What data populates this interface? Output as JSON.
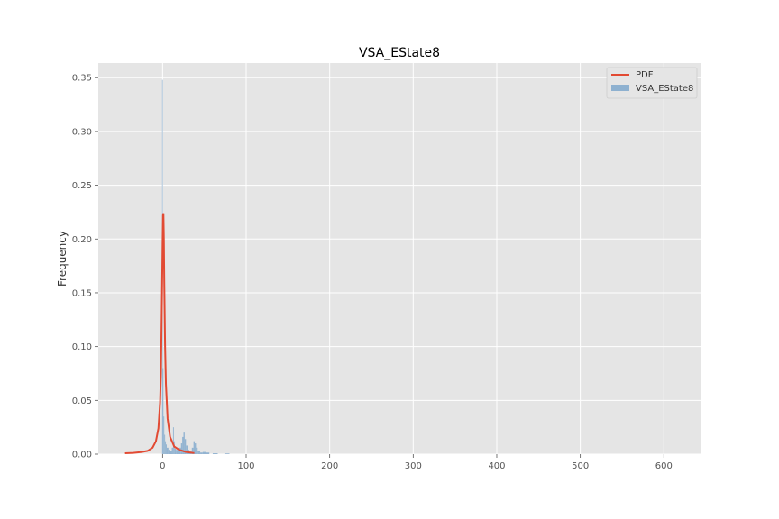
{
  "chart_data": {
    "type": "histogram",
    "title": "VSA_EState8",
    "xlabel": "",
    "ylabel": "Frequency",
    "xlim": [
      -77,
      645
    ],
    "ylim": [
      0,
      0.3636
    ],
    "xticks": [
      0,
      100,
      200,
      300,
      400,
      500,
      600
    ],
    "yticks": [
      0.0,
      0.05,
      0.1,
      0.15,
      0.2,
      0.25,
      0.3,
      0.35
    ],
    "ytick_labels": [
      "0.00",
      "0.05",
      "0.10",
      "0.15",
      "0.20",
      "0.25",
      "0.30",
      "0.35"
    ],
    "grid": true,
    "legend": {
      "placement": "top-right",
      "entries": [
        {
          "name": "PDF",
          "kind": "line",
          "color": "#E24A33"
        },
        {
          "name": "VSA_EState8",
          "kind": "patch",
          "color": "#8EB1D0"
        }
      ]
    },
    "colors": {
      "background": "#E5E5E5",
      "grid": "#FFFFFF",
      "pdf": "#E24A33",
      "hist": "#8EB1D0"
    },
    "series": [
      {
        "name": "PDF",
        "type": "line",
        "x": [
          -45,
          -35,
          -25,
          -18,
          -12,
          -8,
          -5,
          -3,
          -2,
          -1,
          0,
          0.5,
          1,
          1.5,
          2,
          3,
          4,
          6,
          9,
          14,
          20,
          28,
          38
        ],
        "y": [
          0.0008,
          0.0012,
          0.002,
          0.003,
          0.006,
          0.012,
          0.024,
          0.048,
          0.075,
          0.13,
          0.195,
          0.222,
          0.224,
          0.2,
          0.16,
          0.1,
          0.065,
          0.033,
          0.016,
          0.007,
          0.004,
          0.002,
          0.001
        ]
      },
      {
        "name": "VSA_EState8",
        "type": "histogram",
        "bins": [
          {
            "x0": -0.6,
            "x1": 0.2,
            "y": 0.348
          },
          {
            "x0": 0.2,
            "x1": 1.0,
            "y": 0.08
          },
          {
            "x0": 1.0,
            "x1": 2.0,
            "y": 0.035
          },
          {
            "x0": 2.0,
            "x1": 3.0,
            "y": 0.018
          },
          {
            "x0": 3.0,
            "x1": 4.0,
            "y": 0.012
          },
          {
            "x0": 4.0,
            "x1": 5.0,
            "y": 0.009
          },
          {
            "x0": 5.0,
            "x1": 7.0,
            "y": 0.006
          },
          {
            "x0": 7.0,
            "x1": 9.0,
            "y": 0.004
          },
          {
            "x0": 9.0,
            "x1": 11.0,
            "y": 0.003
          },
          {
            "x0": 11.0,
            "x1": 12.5,
            "y": 0.006
          },
          {
            "x0": 12.5,
            "x1": 13.5,
            "y": 0.025
          },
          {
            "x0": 13.5,
            "x1": 14.5,
            "y": 0.012
          },
          {
            "x0": 14.5,
            "x1": 16.0,
            "y": 0.005
          },
          {
            "x0": 16.0,
            "x1": 18.0,
            "y": 0.004
          },
          {
            "x0": 18.0,
            "x1": 20.0,
            "y": 0.005
          },
          {
            "x0": 20.0,
            "x1": 22.0,
            "y": 0.006
          },
          {
            "x0": 22.0,
            "x1": 23.5,
            "y": 0.01
          },
          {
            "x0": 23.5,
            "x1": 25.0,
            "y": 0.016
          },
          {
            "x0": 25.0,
            "x1": 26.5,
            "y": 0.02
          },
          {
            "x0": 26.5,
            "x1": 28.0,
            "y": 0.014
          },
          {
            "x0": 28.0,
            "x1": 30.0,
            "y": 0.008
          },
          {
            "x0": 30.0,
            "x1": 32.0,
            "y": 0.004
          },
          {
            "x0": 32.0,
            "x1": 35.0,
            "y": 0.003
          },
          {
            "x0": 35.0,
            "x1": 37.0,
            "y": 0.006
          },
          {
            "x0": 37.0,
            "x1": 38.5,
            "y": 0.012
          },
          {
            "x0": 38.5,
            "x1": 40.0,
            "y": 0.01
          },
          {
            "x0": 40.0,
            "x1": 42.0,
            "y": 0.006
          },
          {
            "x0": 42.0,
            "x1": 45.0,
            "y": 0.003
          },
          {
            "x0": 45.0,
            "x1": 48.0,
            "y": 0.0015
          },
          {
            "x0": 48.0,
            "x1": 52.0,
            "y": 0.002
          },
          {
            "x0": 52.0,
            "x1": 56.0,
            "y": 0.0015
          },
          {
            "x0": 60.0,
            "x1": 66.0,
            "y": 0.0008
          },
          {
            "x0": 74.0,
            "x1": 80.0,
            "y": 0.0006
          }
        ]
      }
    ]
  }
}
